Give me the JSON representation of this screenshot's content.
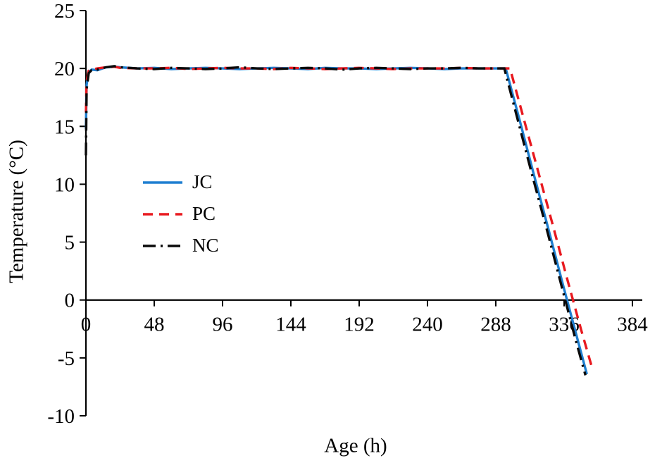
{
  "figure": {
    "background": "#ffffff",
    "axis_color": "#000000"
  },
  "chart_data": {
    "type": "line",
    "title": "",
    "xlabel": "Age (h)",
    "ylabel": "Temperature (°C)",
    "xlim": [
      0,
      384
    ],
    "ylim": [
      -10,
      25
    ],
    "xticks": [
      0,
      48,
      96,
      144,
      192,
      240,
      288,
      336,
      384
    ],
    "yticks": [
      -10,
      -5,
      0,
      5,
      10,
      15,
      20,
      25
    ],
    "grid": false,
    "axis_color": "#000000",
    "legend": {
      "position": "inside-left",
      "entries": [
        "JC",
        "PC",
        "NC"
      ]
    },
    "series": [
      {
        "name": "JC",
        "color": "#1f7fd0",
        "line_style": "solid",
        "x": [
          0,
          0.5,
          2,
          4,
          8,
          14,
          20,
          24,
          36,
          48,
          60,
          72,
          84,
          96,
          108,
          120,
          132,
          144,
          156,
          168,
          180,
          192,
          204,
          216,
          228,
          240,
          252,
          264,
          276,
          288,
          295,
          305,
          315,
          325,
          335,
          345,
          352
        ],
        "y": [
          14.8,
          18.6,
          19.7,
          19.9,
          19.85,
          20.1,
          20.15,
          20.1,
          20.0,
          20.05,
          19.95,
          20.0,
          20.05,
          20.0,
          19.95,
          20.0,
          20.05,
          20.0,
          19.95,
          20.05,
          20.0,
          20.0,
          19.95,
          20.0,
          20.05,
          20.0,
          19.95,
          20.0,
          20.0,
          20.0,
          20.0,
          15.4,
          10.7,
          6.1,
          1.4,
          -3.2,
          -6.4
        ]
      },
      {
        "name": "PC",
        "color": "#e8191f",
        "line_style": "dashed",
        "x": [
          0,
          0.5,
          2,
          4,
          8,
          14,
          20,
          24,
          36,
          48,
          60,
          72,
          84,
          96,
          108,
          120,
          132,
          144,
          156,
          168,
          180,
          192,
          204,
          216,
          228,
          240,
          252,
          264,
          276,
          288,
          298,
          308,
          318,
          328,
          338,
          348,
          356
        ],
        "y": [
          16.2,
          18.9,
          19.8,
          19.9,
          20.0,
          20.1,
          20.15,
          20.05,
          20.0,
          20.0,
          20.05,
          19.95,
          20.0,
          20.05,
          20.0,
          20.0,
          19.95,
          20.05,
          20.0,
          19.95,
          20.0,
          20.05,
          20.0,
          19.95,
          20.0,
          20.0,
          20.0,
          20.05,
          20.0,
          20.0,
          20.0,
          15.5,
          11.0,
          6.5,
          1.9,
          -2.6,
          -6.0
        ]
      },
      {
        "name": "NC",
        "color": "#0a0a0a",
        "line_style": "dashdot",
        "x": [
          0,
          0.5,
          2,
          4,
          8,
          14,
          20,
          24,
          36,
          48,
          60,
          72,
          84,
          96,
          108,
          120,
          132,
          144,
          156,
          168,
          180,
          192,
          204,
          216,
          228,
          240,
          252,
          264,
          276,
          288,
          294,
          304,
          314,
          324,
          334,
          344,
          351
        ],
        "y": [
          12.5,
          18.2,
          19.6,
          19.85,
          19.9,
          20.1,
          20.2,
          20.1,
          20.0,
          19.95,
          20.05,
          20.0,
          19.95,
          20.0,
          20.1,
          20.0,
          19.95,
          20.0,
          20.05,
          20.0,
          19.9,
          20.0,
          20.05,
          20.0,
          19.95,
          20.0,
          20.0,
          20.05,
          20.0,
          20.0,
          20.0,
          15.3,
          10.6,
          6.0,
          1.3,
          -3.4,
          -6.5
        ]
      }
    ]
  }
}
